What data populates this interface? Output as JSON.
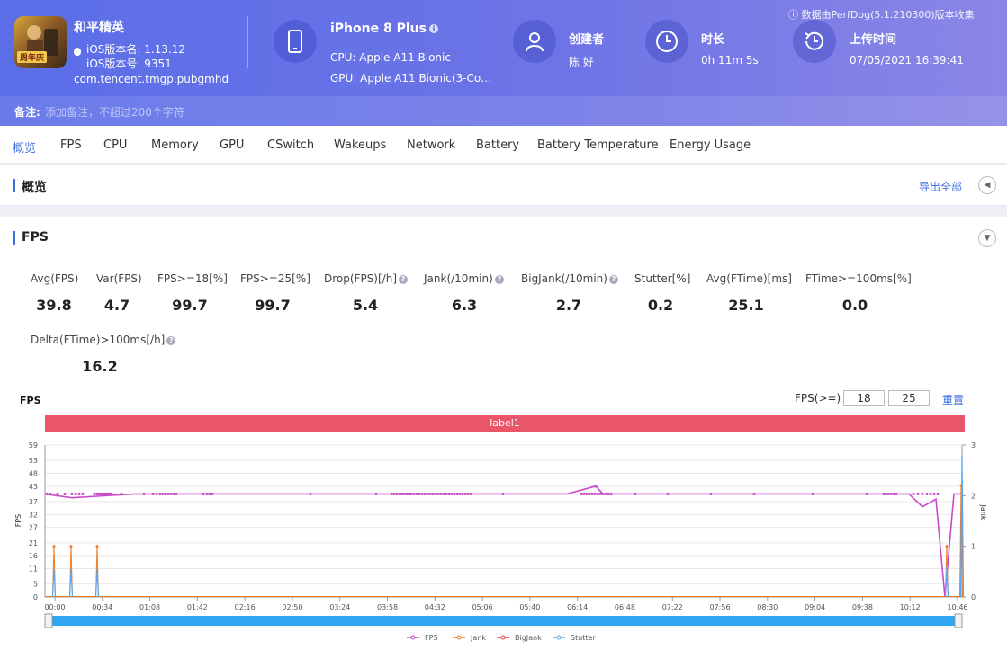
{
  "header": {
    "note": "ⓘ 数据由PerfDog(5.1.210300)版本收集",
    "app": {
      "icon_badge": "周年庆",
      "name": "和平精英",
      "version_line": "iOS版本名: 1.13.12",
      "build_line": "iOS版本号: 9351",
      "package": "com.tencent.tmgp.pubgmhd"
    },
    "device": {
      "model": "iPhone 8 Plus",
      "info_mark": "i",
      "cpu": "CPU: Apple A11 Bionic",
      "gpu": "GPU: Apple A11 Bionic(3-Cor..."
    },
    "creator": {
      "label": "创建者",
      "value": "陈 好"
    },
    "duration": {
      "label": "时长",
      "value": "0h 11m 5s"
    },
    "upload": {
      "label": "上传时间",
      "value": "07/05/2021 16:39:41"
    },
    "remark_label": "备注:",
    "remark_placeholder": "添加备注，不超过200个字符"
  },
  "tabs": [
    "概览",
    "FPS",
    "CPU",
    "Memory",
    "GPU",
    "CSwitch",
    "Wakeups",
    "Network",
    "Battery",
    "Battery Temperature",
    "Energy Usage"
  ],
  "active_tab": "概览",
  "overview": {
    "title": "概览",
    "export_label": "导出全部",
    "collapse_glyph": "◀"
  },
  "fps_section": {
    "title": "FPS",
    "collapse_glyph": "▼",
    "help_mark": "?",
    "metrics_row1": [
      {
        "label": "Avg(FPS)",
        "value": "39.8",
        "help": false
      },
      {
        "label": "Var(FPS)",
        "value": "4.7",
        "help": false
      },
      {
        "label": "FPS>=18[%]",
        "value": "99.7",
        "help": false
      },
      {
        "label": "FPS>=25[%]",
        "value": "99.7",
        "help": false
      },
      {
        "label": "Drop(FPS)[/h]",
        "value": "5.4",
        "help": true
      },
      {
        "label": "Jank(/10min)",
        "value": "6.3",
        "help": true
      },
      {
        "label": "BigJank(/10min)",
        "value": "2.7",
        "help": true
      },
      {
        "label": "Stutter[%]",
        "value": "0.2",
        "help": false
      },
      {
        "label": "Avg(FTime)[ms]",
        "value": "25.1",
        "help": false
      },
      {
        "label": "FTime>=100ms[%]",
        "value": "0.0",
        "help": false
      }
    ],
    "metrics_row2": [
      {
        "label": "Delta(FTime)>100ms[/h]",
        "value": "16.2",
        "help": true
      }
    ],
    "chart_title": "FPS",
    "threshold_label": "FPS(>=)",
    "threshold_values": [
      "18",
      "25"
    ],
    "reset_label": "重置",
    "band_label": "label1"
  },
  "chart_data": {
    "type": "line",
    "ylabel": "FPS",
    "y2label": "Jank",
    "ylim": [
      0,
      59
    ],
    "y2lim": [
      0,
      3
    ],
    "y_ticks": [
      0,
      5,
      11,
      16,
      21,
      27,
      32,
      37,
      43,
      48,
      53,
      59
    ],
    "y2_ticks": [
      0,
      1,
      2,
      3
    ],
    "x_ticks": [
      "00:00",
      "00:34",
      "01:08",
      "01:42",
      "02:16",
      "02:50",
      "03:24",
      "03:58",
      "04:32",
      "05:06",
      "05:40",
      "06:14",
      "06:48",
      "07:22",
      "07:56",
      "08:30",
      "09:04",
      "09:38",
      "10:12",
      "10:46"
    ],
    "duration_seconds": 665,
    "grid": true,
    "legend": "bottom",
    "series": [
      {
        "name": "FPS",
        "axis": "left",
        "color": "#c84bc8",
        "baseline": 40,
        "points": [
          [
            0,
            40
          ],
          [
            10,
            39.5
          ],
          [
            30,
            38.5
          ],
          [
            100,
            40
          ],
          [
            300,
            40
          ],
          [
            500,
            40
          ],
          [
            580,
            40
          ],
          [
            612,
            43
          ],
          [
            620,
            40
          ],
          [
            700,
            40
          ],
          [
            960,
            40
          ],
          [
            975,
            35
          ],
          [
            990,
            38
          ],
          [
            1000,
            0
          ],
          [
            1010,
            40
          ],
          [
            1019,
            40
          ]
        ],
        "marker_times": [
          2,
          6,
          14,
          22,
          30,
          34,
          38,
          42,
          55,
          58,
          60,
          62,
          64,
          66,
          68,
          70,
          72,
          74,
          85,
          110,
          120,
          124,
          128,
          131,
          134,
          137,
          140,
          143,
          146,
          176,
          180,
          183,
          186,
          295,
          368,
          385,
          388,
          391,
          394,
          396,
          398,
          401,
          403,
          405,
          407,
          410,
          413,
          416,
          419,
          422,
          425,
          428,
          431,
          434,
          437,
          440,
          443,
          446,
          449,
          452,
          455,
          458,
          461,
          464,
          467,
          470,
          473,
          509,
          596,
          599,
          602,
          605,
          608,
          611,
          614,
          617,
          620,
          623,
          626,
          629,
          656,
          692,
          740,
          788,
          853,
          913,
          932,
          934,
          937,
          940,
          943,
          946,
          965,
          970,
          975,
          980,
          984,
          988,
          992
        ]
      },
      {
        "name": "Jank",
        "axis": "right",
        "color": "#f07a22",
        "points": [
          [
            10,
            1
          ],
          [
            29,
            1
          ],
          [
            58,
            1
          ],
          [
            1002,
            1
          ],
          [
            1018,
            2.2
          ]
        ]
      },
      {
        "name": "BigJank",
        "axis": "right",
        "color": "#e3404a",
        "points": []
      },
      {
        "name": "Stutter",
        "axis": "right",
        "color": "#5aa6f0",
        "points": [
          [
            10,
            0.55
          ],
          [
            29,
            0.55
          ],
          [
            58,
            0.55
          ],
          [
            1002,
            0.6
          ],
          [
            1019,
            2.8
          ]
        ]
      }
    ]
  },
  "axis_labels": {
    "y": "FPS",
    "y2": "Jank"
  },
  "legend": [
    "FPS",
    "Jank",
    "BigJank",
    "Stutter"
  ]
}
